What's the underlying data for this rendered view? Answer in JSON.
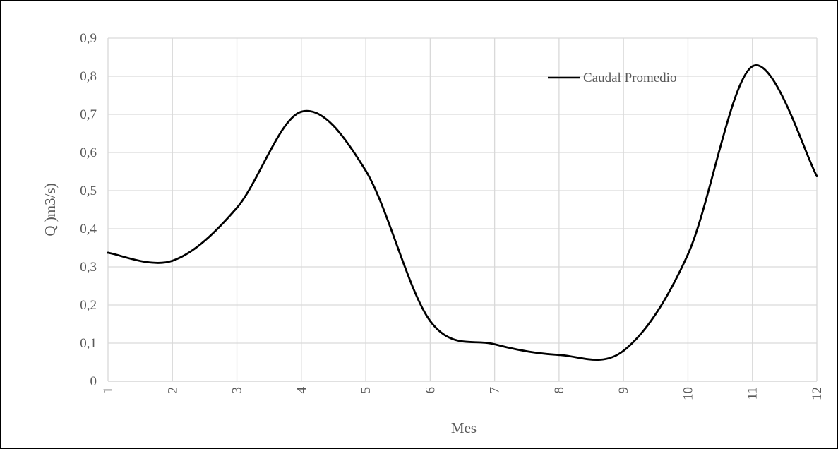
{
  "chart_data": {
    "type": "line",
    "xlabel": "Mes",
    "ylabel": "Q )m3/s)",
    "ylim": [
      0,
      0.9
    ],
    "y_ticks": [
      "0",
      "0,1",
      "0,2",
      "0,3",
      "0,4",
      "0,5",
      "0,6",
      "0,7",
      "0,8",
      "0,9"
    ],
    "categories": [
      "1",
      "2",
      "3",
      "4",
      "5",
      "6",
      "7",
      "8",
      "9",
      "10",
      "11",
      "12"
    ],
    "grid": true,
    "legend_position": "top-right",
    "series": [
      {
        "name": "Caudal Promedio",
        "color": "#000000",
        "smooth": true,
        "values": [
          0.337,
          0.316,
          0.455,
          0.707,
          0.552,
          0.158,
          0.097,
          0.069,
          0.08,
          0.333,
          0.826,
          0.538
        ]
      }
    ]
  }
}
